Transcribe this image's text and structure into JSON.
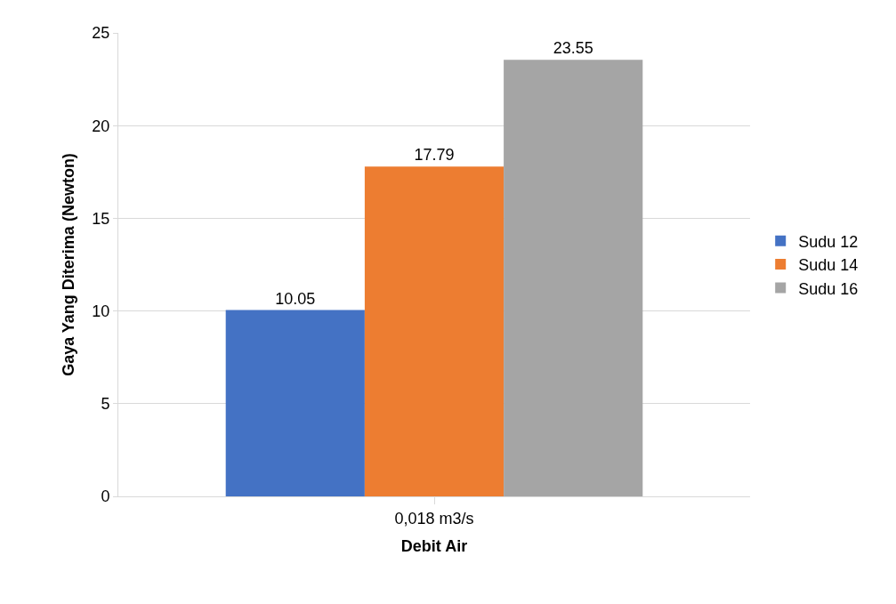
{
  "chart_data": {
    "type": "bar",
    "xlabel": "Debit Air",
    "ylabel": "Gaya Yang Diterima (Newton)",
    "categories": [
      "0,018 m3/s"
    ],
    "series": [
      {
        "name": "Sudu 12",
        "color": "#4472c4",
        "values": [
          10.05
        ]
      },
      {
        "name": "Sudu 14",
        "color": "#ed7d31",
        "values": [
          17.79
        ]
      },
      {
        "name": "Sudu 16",
        "color": "#a5a5a5",
        "values": [
          23.55
        ]
      }
    ],
    "ylim": [
      0,
      25
    ],
    "yticks": [
      0,
      5,
      10,
      15,
      20,
      25
    ],
    "grid": "y",
    "legend": "right",
    "data_labels": true
  }
}
